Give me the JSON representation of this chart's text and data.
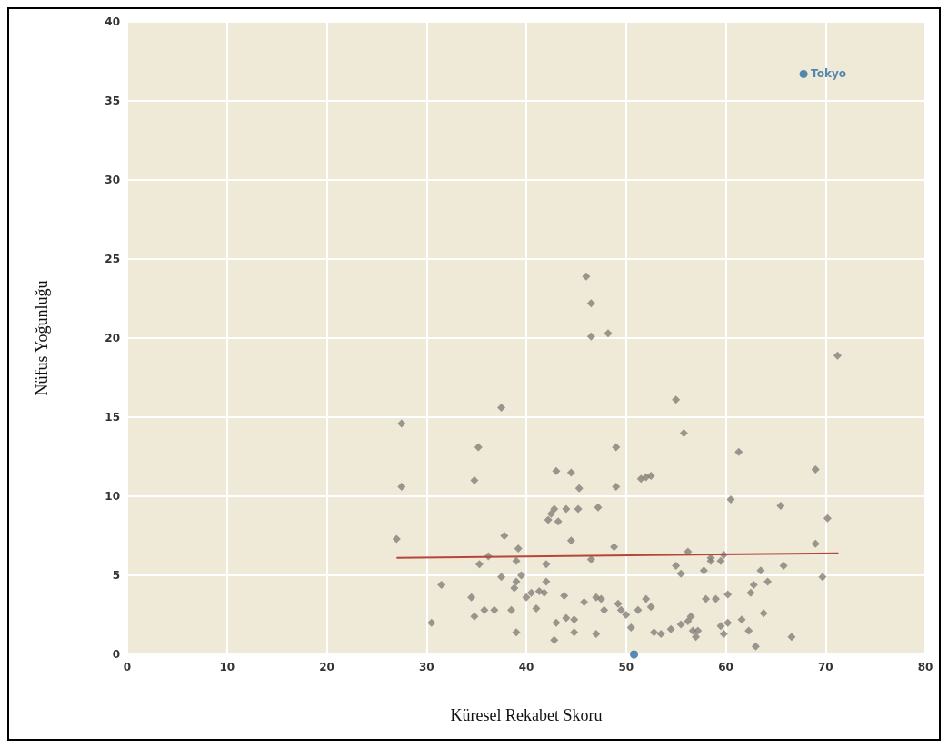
{
  "chart_data": {
    "type": "scatter",
    "xlabel": "Küresel Rekabet Skoru",
    "ylabel": "Nüfus Yoğunluğu",
    "xlim": [
      0,
      80
    ],
    "xticks": [
      0,
      10,
      20,
      30,
      40,
      50,
      60,
      70,
      80
    ],
    "ylim": [
      0,
      40
    ],
    "yticks": [
      0,
      5,
      10,
      15,
      20,
      25,
      30,
      35,
      40
    ],
    "grid": true,
    "annotations": [
      {
        "text": "Tokyo",
        "x": 67.8,
        "y": 36.7
      }
    ],
    "series": [
      {
        "color": "#858079",
        "marker": "diamond",
        "x": [
          27.0,
          27.5,
          27.5,
          30.5,
          31.5,
          34.5,
          34.8,
          34.8,
          35.2,
          35.3,
          35.8,
          36.2,
          36.8,
          37.5,
          37.5,
          37.8,
          38.5,
          38.8,
          39.0,
          39.0,
          39.0,
          39.2,
          39.5,
          40.0,
          40.5,
          41.0,
          41.3,
          41.8,
          42.0,
          42.0,
          42.2,
          42.5,
          42.8,
          43.0,
          42.8,
          43.0,
          43.2,
          44.0,
          43.8,
          44.0,
          44.5,
          44.5,
          44.8,
          44.8,
          45.2,
          45.3,
          45.8,
          46.0,
          46.5,
          46.5,
          46.5,
          47.0,
          47.0,
          47.2,
          47.5,
          47.8,
          48.2,
          48.8,
          49.0,
          49.0,
          49.2,
          49.5,
          50.0,
          50.5,
          51.2,
          51.5,
          52.0,
          52.0,
          52.5,
          52.5,
          52.8,
          53.5,
          54.5,
          55.0,
          55.0,
          55.5,
          55.5,
          55.8,
          56.2,
          56.2,
          56.5,
          56.7,
          57.0,
          57.2,
          57.8,
          58.0,
          58.5,
          58.5,
          59.0,
          59.5,
          59.5,
          59.8,
          59.8,
          60.2,
          60.2,
          60.5,
          61.3,
          61.6,
          62.3,
          62.5,
          62.8,
          63.0,
          63.5,
          63.8,
          64.2,
          65.5,
          65.8,
          66.6,
          69.0,
          69.0,
          69.7,
          70.2,
          71.2
        ],
        "values": [
          7.3,
          14.6,
          10.6,
          2.0,
          4.4,
          3.6,
          2.4,
          11.0,
          13.1,
          5.7,
          2.8,
          6.2,
          2.8,
          15.6,
          4.9,
          7.5,
          2.8,
          4.2,
          4.6,
          1.4,
          5.9,
          6.7,
          5.0,
          3.6,
          3.9,
          2.9,
          4.0,
          3.9,
          4.6,
          5.7,
          8.5,
          8.9,
          9.2,
          11.6,
          0.9,
          2.0,
          8.4,
          9.2,
          3.7,
          2.3,
          7.2,
          11.5,
          1.4,
          2.2,
          9.2,
          10.5,
          3.3,
          23.9,
          22.2,
          20.1,
          6.0,
          3.6,
          1.3,
          9.3,
          3.5,
          2.8,
          20.3,
          6.8,
          13.1,
          10.6,
          3.2,
          2.8,
          2.5,
          1.7,
          2.8,
          11.1,
          11.2,
          3.5,
          11.3,
          3.0,
          1.4,
          1.3,
          1.6,
          16.1,
          5.6,
          5.1,
          1.9,
          14.0,
          2.1,
          6.5,
          2.4,
          1.5,
          1.1,
          1.5,
          5.3,
          3.5,
          6.1,
          5.9,
          3.5,
          1.8,
          5.9,
          6.3,
          1.3,
          2.0,
          3.8,
          9.8,
          12.8,
          2.2,
          1.5,
          3.9,
          4.4,
          0.5,
          5.3,
          2.6,
          4.6,
          9.4,
          5.6,
          1.1,
          11.7,
          7.0,
          4.9,
          8.6,
          18.9
        ]
      },
      {
        "color": "#2e6da4",
        "marker": "circle",
        "x": [
          67.8,
          50.8
        ],
        "values": [
          36.7,
          0.0
        ]
      },
      {
        "type": "line",
        "color": "#b5473a",
        "marker": "none",
        "line_style": "solid",
        "x": [
          27.0,
          71.3
        ],
        "values": [
          6.1,
          6.4
        ]
      }
    ]
  }
}
